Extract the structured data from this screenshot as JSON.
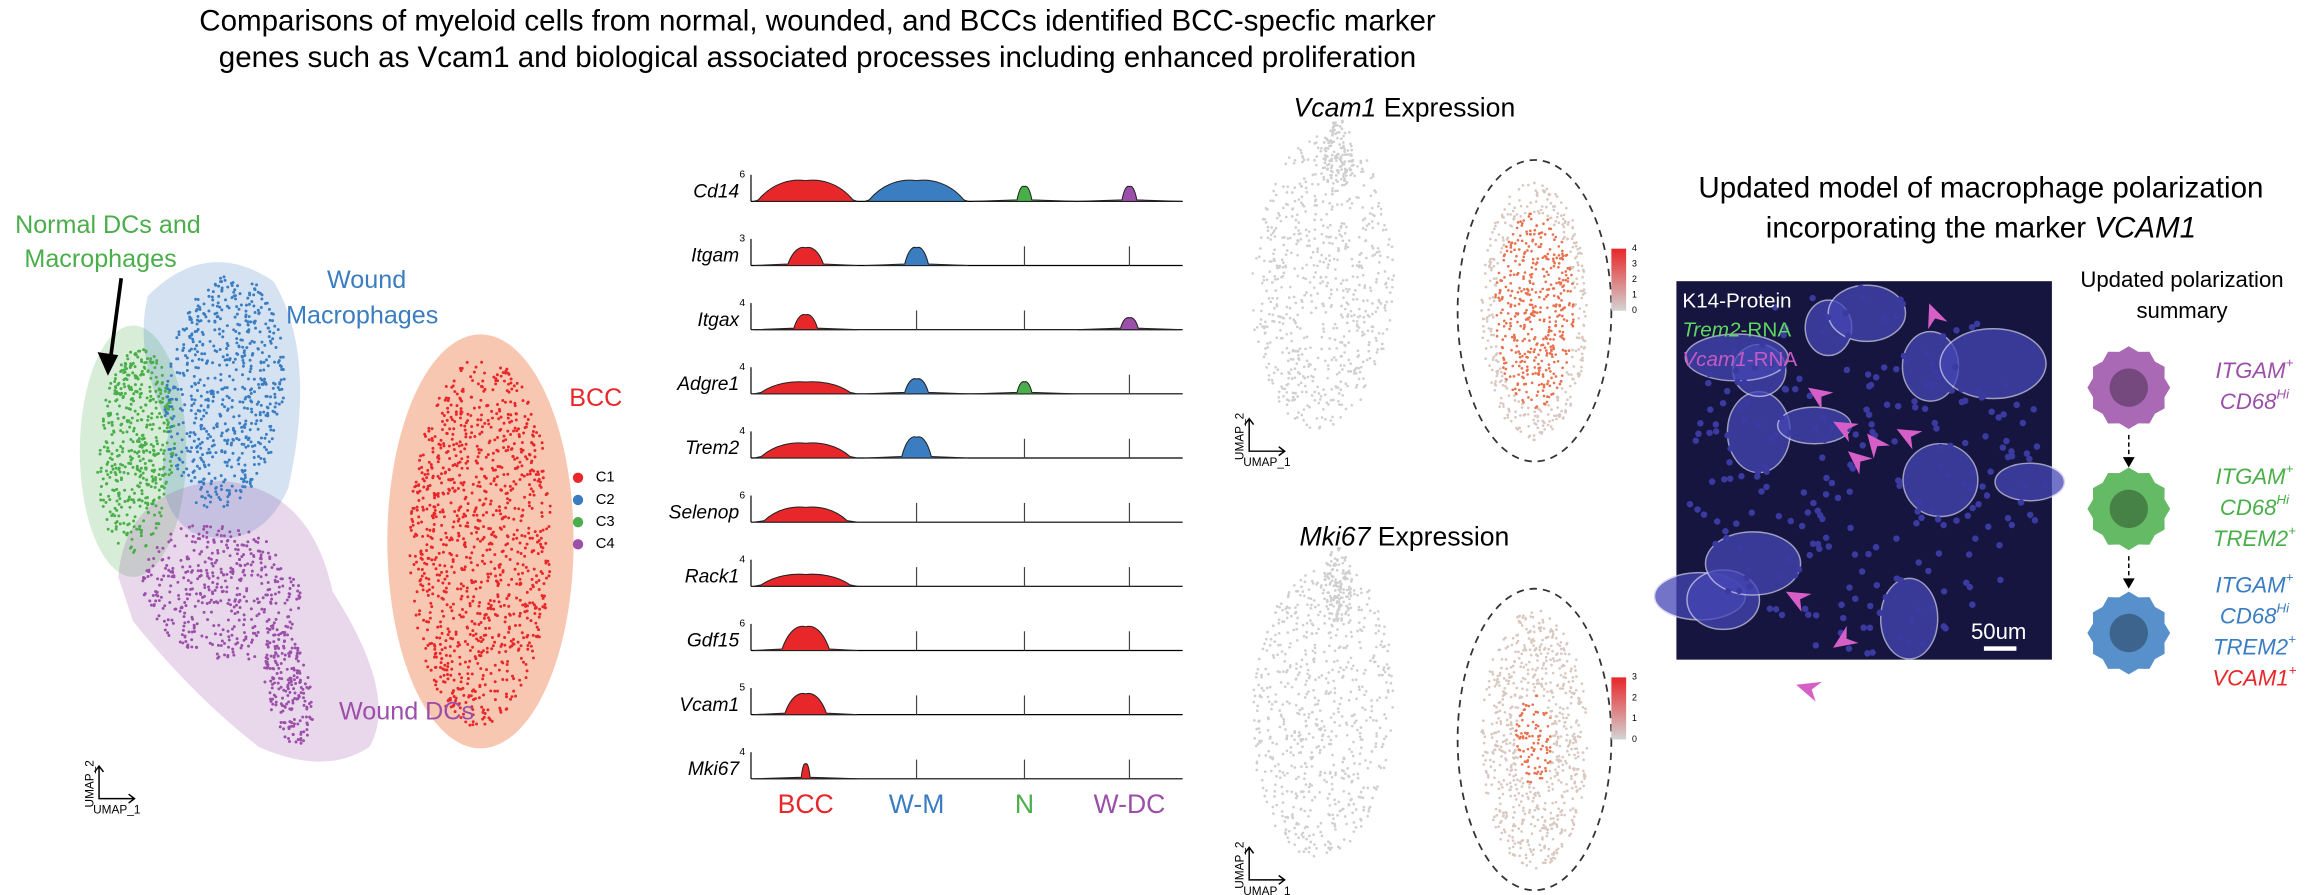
{
  "title": [
    "Comparisons of myeloid cells from normal, wounded, and BCCs identified BCC-specfic marker",
    "genes such as Vcam1 and biological associated processes including enhanced proliferation"
  ],
  "umap": {
    "normal_label": [
      "Normal DCs and",
      "Macrophages"
    ],
    "wound_mac_label": [
      "Wound",
      "Macrophages"
    ],
    "bcc_label": "BCC",
    "wound_dc_label": "Wound DCs",
    "legend": [
      "C1",
      "C2",
      "C3",
      "C4"
    ],
    "axis_x": "UMAP_1",
    "axis_y": "UMAP_2"
  },
  "violin": {
    "genes": [
      "Cd14",
      "Itgam",
      "Itgax",
      "Adgre1",
      "Trem2",
      "Selenop",
      "Rack1",
      "Gdf15",
      "Vcam1",
      "Mki67"
    ],
    "ymax": [
      6,
      3,
      4,
      4,
      4,
      6,
      4,
      6,
      5,
      4
    ],
    "groups": [
      "BCC",
      "W-M",
      "N",
      "W-DC"
    ]
  },
  "features": [
    {
      "gene": "Vcam1",
      "suffix": " Expression",
      "ticks": [
        4,
        3,
        2,
        1,
        0
      ]
    },
    {
      "gene": "Mki67",
      "suffix": " Expression",
      "ticks": [
        3,
        2,
        1,
        0
      ]
    }
  ],
  "feature_axis_x": "UMAP_1",
  "feature_axis_y": "UMAP_2",
  "model": {
    "title_line1": "Updated model of macrophage polarization",
    "title_line2": "incorporating the marker ",
    "title_italic": "VCAM1",
    "k14": "K14-Protein",
    "trem2": [
      "Trem2",
      "-RNA"
    ],
    "vcam1": [
      "Vcam1",
      "-RNA"
    ],
    "scale": "50um",
    "summary_title": [
      "Updated polarization",
      "summary"
    ],
    "cells": [
      {
        "color": "#9b4fa8",
        "markers": [
          {
            "text": "ITGAM",
            "sup": "+",
            "color": "#9b4fa8"
          },
          {
            "text": "CD68",
            "sup": "Hi",
            "color": "#9b4fa8"
          }
        ]
      },
      {
        "color": "#4aae4a",
        "markers": [
          {
            "text": "ITGAM",
            "sup": "+",
            "color": "#4aae4a"
          },
          {
            "text": "CD68",
            "sup": "Hi",
            "color": "#4aae4a"
          },
          {
            "text": "TREM2",
            "sup": "+",
            "color": "#4aae4a"
          }
        ]
      },
      {
        "color": "#3a7dc1",
        "markers": [
          {
            "text": "ITGAM",
            "sup": "+",
            "color": "#3a7dc1"
          },
          {
            "text": "CD68",
            "sup": "Hi",
            "color": "#3a7dc1"
          },
          {
            "text": "TREM2",
            "sup": "+",
            "color": "#3a7dc1"
          },
          {
            "text": "VCAM1",
            "sup": "+",
            "color": "#e8272a"
          }
        ]
      }
    ]
  }
}
